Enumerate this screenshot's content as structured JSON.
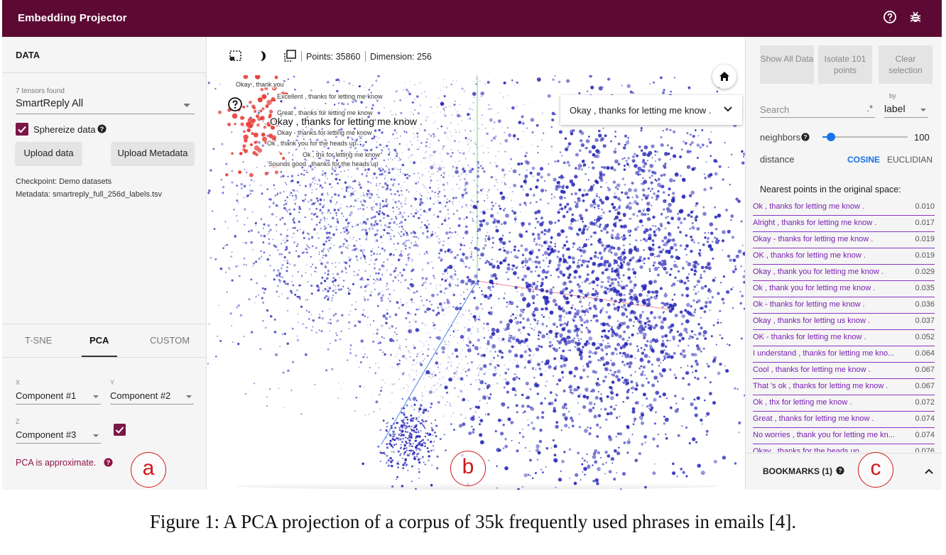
{
  "header": {
    "title": "Embedding Projector"
  },
  "left_panel": {
    "heading": "DATA",
    "tensors_found": "7 tensors found",
    "selected_tensor": "SmartReply All",
    "sphereize_label": "Sphereize data",
    "sphereize_checked": true,
    "upload_data_label": "Upload data",
    "upload_metadata_label": "Upload Metadata",
    "checkpoint": "Checkpoint: Demo datasets",
    "metadata": "Metadata: smartreply_full_256d_labels.tsv",
    "projection_tabs": [
      "T-SNE",
      "PCA",
      "CUSTOM"
    ],
    "active_tab": "PCA",
    "x_axis_label": "X",
    "y_axis_label": "Y",
    "z_axis_label": "Z",
    "x_component": "Component #1",
    "y_component": "Component #2",
    "z_component": "Component #3",
    "z_enabled": true,
    "pca_note": "PCA is approximate."
  },
  "center": {
    "points": "Points: 35860",
    "dimension": "Dimension: 256",
    "selected_label": "Okay , thanks for letting me know .",
    "point_labels": [
      "Okay , thank you",
      "Excellent , thanks for letting me know",
      "Great , thanks for letting me know",
      "Okay , thanks for letting me know .",
      "Okay - thanks for letting me know",
      "Ok , thank you for the heads up",
      "Ok , thx for letting me know",
      "Sounds good , thanks for the heads up"
    ]
  },
  "right_panel": {
    "show_all_label": "Show All Data",
    "isolate_label": "Isolate 101 points",
    "clear_label": "Clear selection",
    "search_placeholder": "Search",
    "regex_icon": ".*",
    "by_label": "by",
    "by_value": "label",
    "neighbors_label": "neighbors",
    "neighbors_value": "100",
    "neighbors_fraction": 0.1,
    "distance_label": "distance",
    "cosine_label": "COSINE",
    "euclidian_label": "EUCLIDIAN",
    "nearest_heading": "Nearest points in the original space:",
    "nearest": [
      {
        "label": "Ok , thanks for letting me know .",
        "value": "0.010"
      },
      {
        "label": "Alright , thanks for letting me know .",
        "value": "0.017"
      },
      {
        "label": "Okay - thanks for letting me know .",
        "value": "0.019"
      },
      {
        "label": "OK , thanks for letting me know .",
        "value": "0.019"
      },
      {
        "label": "Okay , thank you for letting me know .",
        "value": "0.029"
      },
      {
        "label": "Ok , thank you for letting me know .",
        "value": "0.035"
      },
      {
        "label": "Ok - thanks for letting me know .",
        "value": "0.036"
      },
      {
        "label": "Okay , thanks for letting us know .",
        "value": "0.037"
      },
      {
        "label": "OK - thanks for letting me know .",
        "value": "0.052"
      },
      {
        "label": "I understand , thanks for letting me kno...",
        "value": "0.064"
      },
      {
        "label": "Cool , thanks for letting me know .",
        "value": "0.067"
      },
      {
        "label": "That 's ok , thanks for letting me know .",
        "value": "0.067"
      },
      {
        "label": "Ok , thx for letting me know .",
        "value": "0.072"
      },
      {
        "label": "Great , thanks for letting me know .",
        "value": "0.074"
      },
      {
        "label": "No worries , thank you for letting me kn...",
        "value": "0.074"
      },
      {
        "label": "Okay , thanks for the heads up .",
        "value": "0.076"
      }
    ],
    "bookmarks_label": "BOOKMARKS (1)"
  },
  "annotations": [
    "a",
    "b",
    "c"
  ],
  "caption": "Figure 1: A PCA projection of a corpus of 35k frequently used phrases in emails [4].",
  "colors": {
    "header": "#5c0a33",
    "accent": "#7b1646",
    "point": "#2a2ab8",
    "highlight": "#e8403a",
    "link": "#7a1fb0",
    "annotation": "#d01818"
  }
}
